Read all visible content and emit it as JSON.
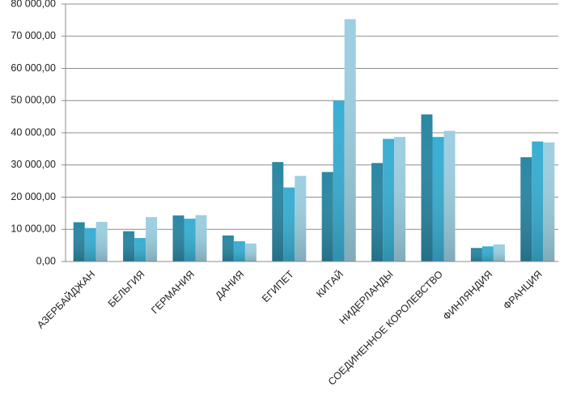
{
  "chart_data": {
    "type": "bar",
    "categories": [
      "АЗЕРБАЙДЖАН",
      "БЕЛЬГИЯ",
      "ГЕРМАНИЯ",
      "ДАНИЯ",
      "ЕГИПЕТ",
      "КИТАЙ",
      "НИДЕРЛАНДЫ",
      "СОЕДИНЕННОЕ КОРОЛЕВСТВО",
      "ФИНЛЯНДИЯ",
      "ФРАНЦИЯ"
    ],
    "series": [
      {
        "color": "#2b87a3",
        "values": [
          12200,
          9400,
          14300,
          8100,
          30900,
          27800,
          30600,
          45700,
          4200,
          32400
        ]
      },
      {
        "color": "#3aaed2",
        "values": [
          10400,
          7300,
          13300,
          6300,
          23000,
          50000,
          38100,
          38700,
          4700,
          37300
        ]
      },
      {
        "color": "#9ccfe0",
        "values": [
          12300,
          13800,
          14400,
          5600,
          26600,
          75300,
          38700,
          40600,
          5300,
          37000
        ]
      }
    ],
    "ylim": [
      0,
      80000
    ],
    "yticks": [
      {
        "value": 0,
        "label": "0,00"
      },
      {
        "value": 10000,
        "label": "10 000,00"
      },
      {
        "value": 20000,
        "label": "20 000,00"
      },
      {
        "value": 30000,
        "label": "30 000,00"
      },
      {
        "value": 40000,
        "label": "40 000,00"
      },
      {
        "value": 50000,
        "label": "50 000,00"
      },
      {
        "value": 60000,
        "label": "60 000,00"
      },
      {
        "value": 70000,
        "label": "70 000,00"
      },
      {
        "value": 80000,
        "label": "80 000,00"
      }
    ],
    "grid": true
  }
}
